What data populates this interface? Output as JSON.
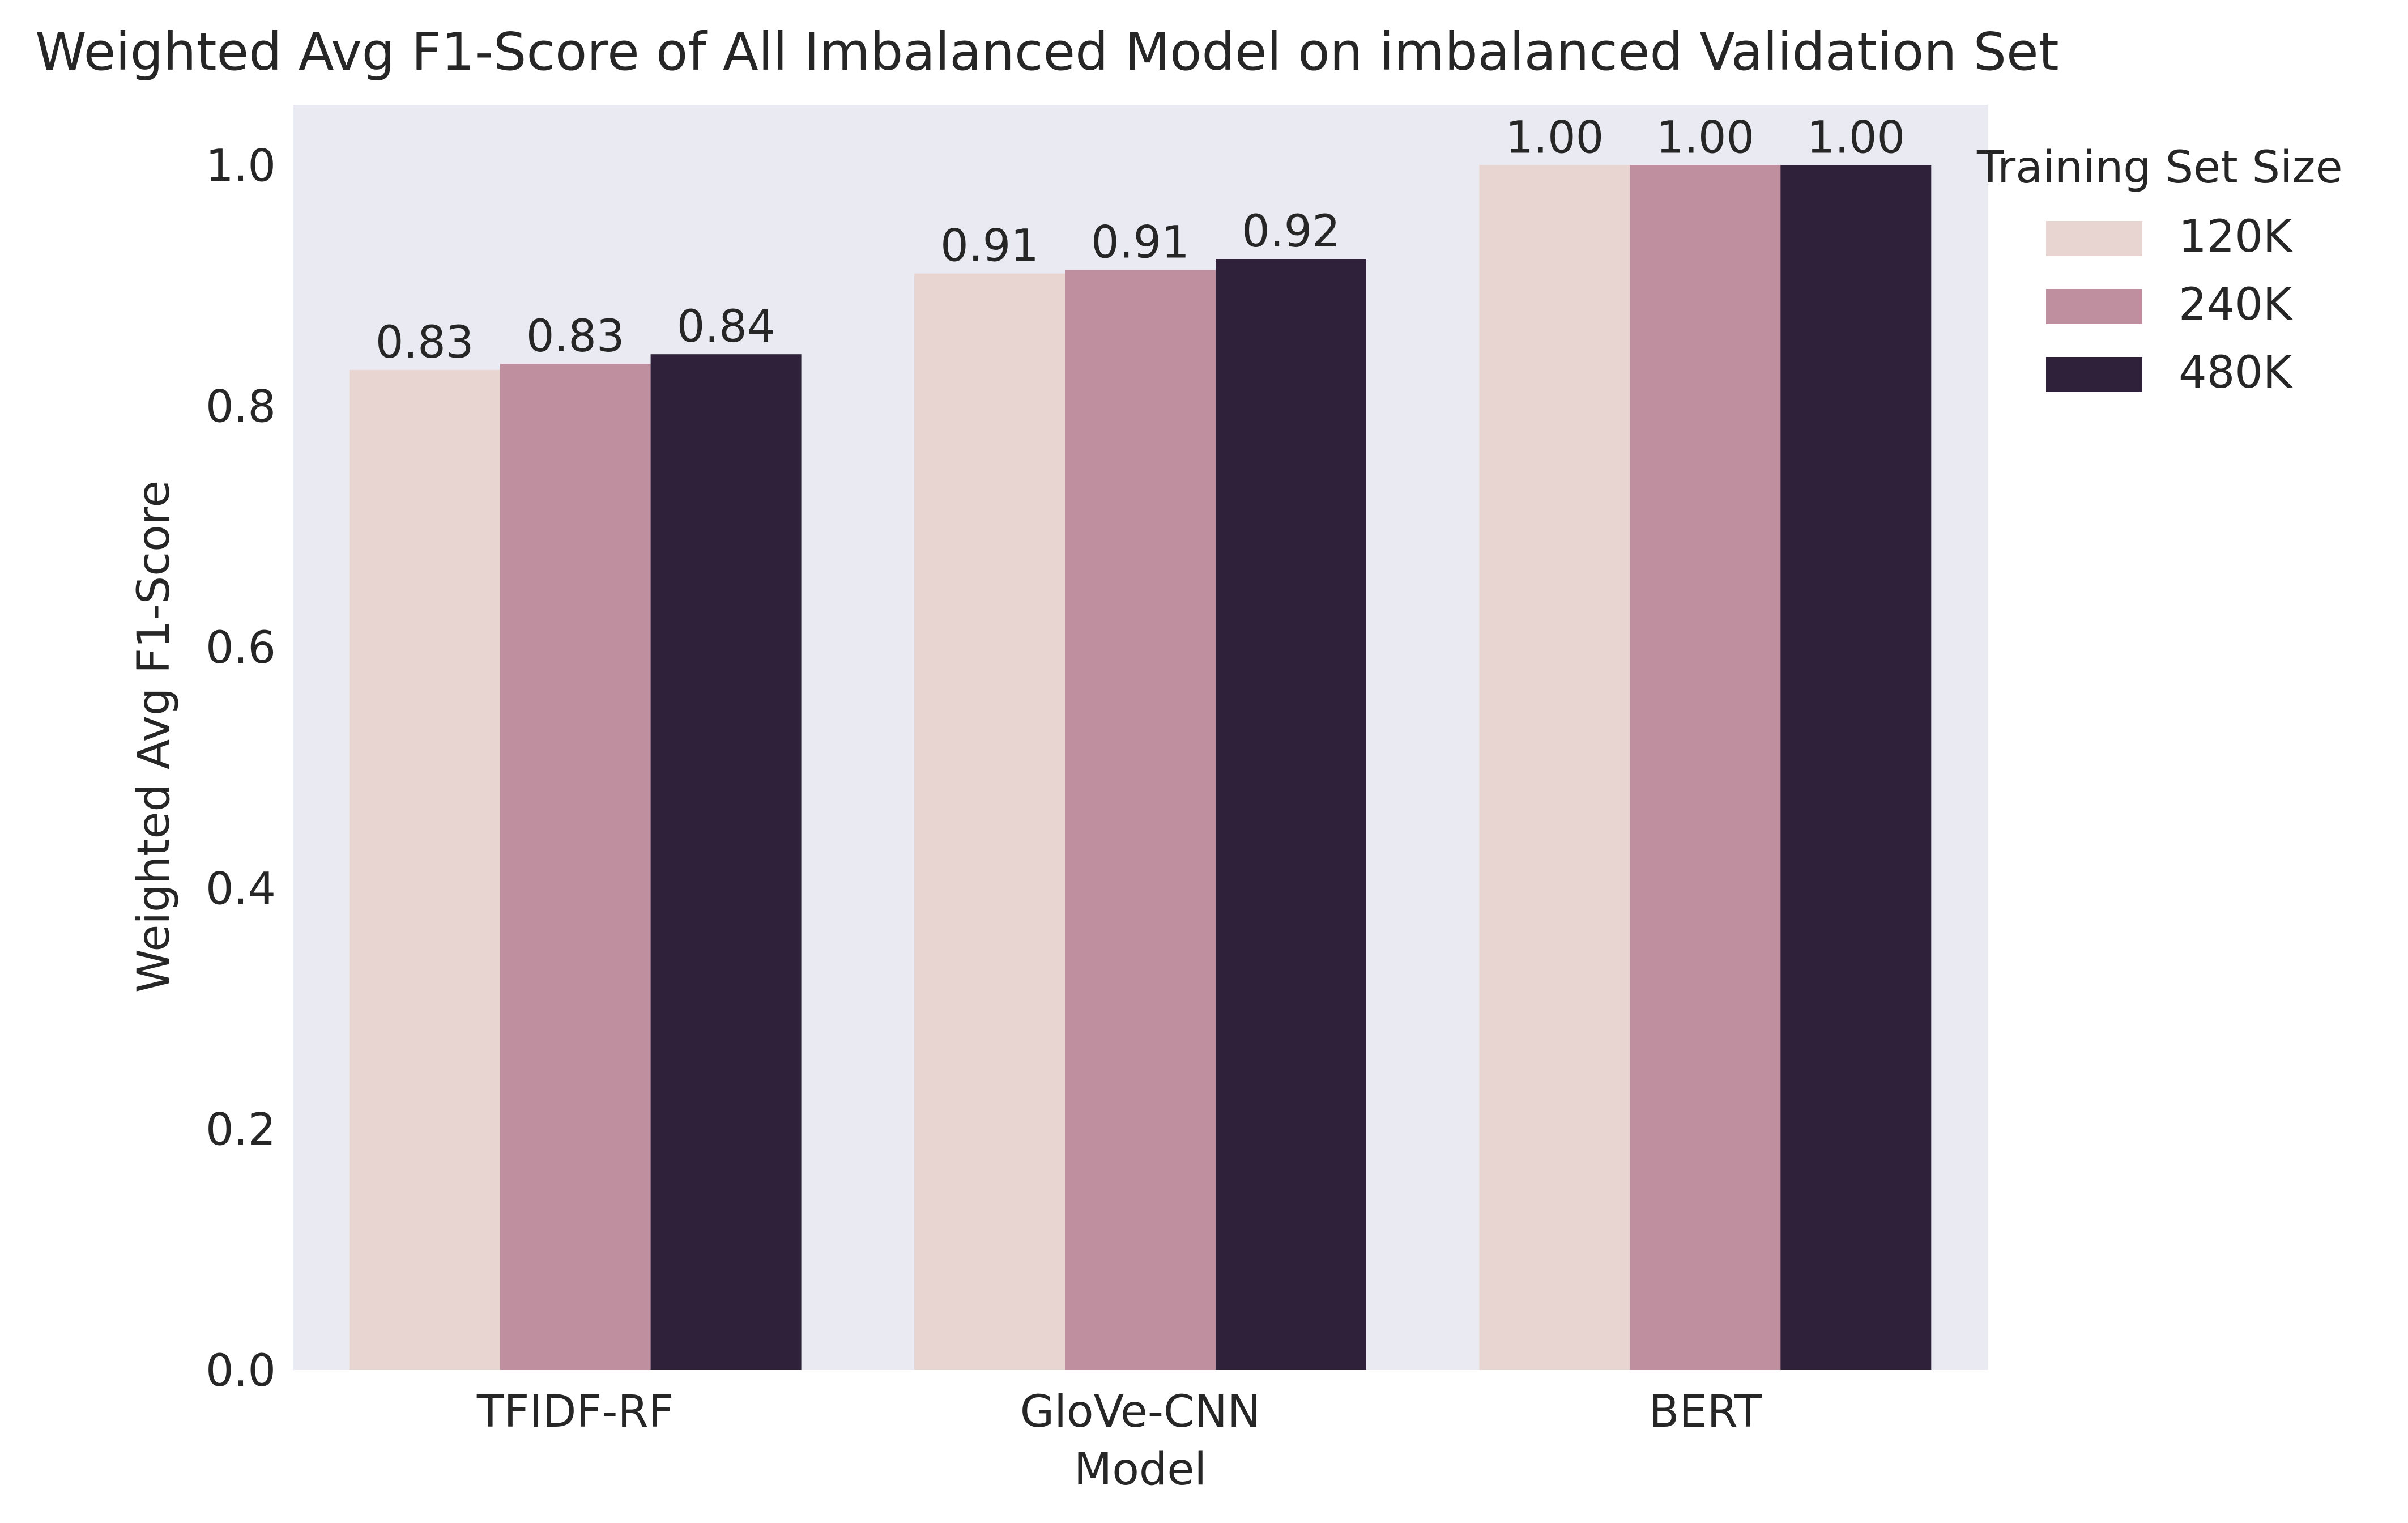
{
  "chart_data": {
    "type": "bar",
    "title": "Weighted Avg F1-Score of All Imbalanced Model on imbalanced Validation Set",
    "xlabel": "Model",
    "ylabel": "Weighted Avg F1-Score",
    "categories": [
      "TFIDF-RF",
      "GloVe-CNN",
      "BERT"
    ],
    "series": [
      {
        "name": "120K",
        "values": [
          0.83,
          0.91,
          1.0
        ],
        "labels": [
          "0.83",
          "0.91",
          "1.00"
        ],
        "color": "#e8d4d0"
      },
      {
        "name": "240K",
        "values": [
          0.835,
          0.913,
          1.0
        ],
        "labels": [
          "0.83",
          "0.91",
          "1.00"
        ],
        "color": "#c08f9f"
      },
      {
        "name": "480K",
        "values": [
          0.843,
          0.922,
          1.0
        ],
        "labels": [
          "0.84",
          "0.92",
          "1.00"
        ],
        "color": "#2e2139"
      }
    ],
    "ylim": [
      0,
      1.05
    ],
    "yticks": [
      0.0,
      0.2,
      0.4,
      0.6,
      0.8,
      1.0
    ],
    "ytick_labels": [
      "0.0",
      "0.2",
      "0.4",
      "0.6",
      "0.8",
      "1.0"
    ],
    "grid": false,
    "legend": {
      "title": "Training Set Size",
      "placement": "outside-right"
    },
    "plot_background": "#eaeaf2"
  }
}
